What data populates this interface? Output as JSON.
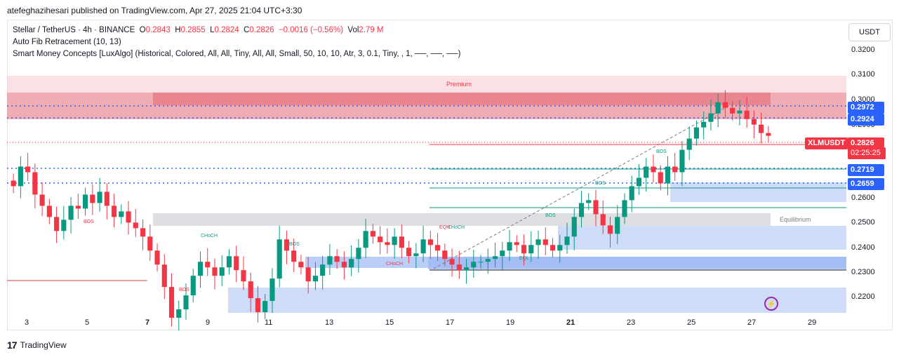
{
  "header": {
    "published": "atefeghazihesari published on TradingView.com, Apr 27, 2025 21:04 UTC+3:30"
  },
  "legend": {
    "symbol": "Stellar / TetherUS · 4h · BINANCE",
    "o_label": "O",
    "o": "0.2843",
    "h_label": "H",
    "h": "0.2855",
    "l_label": "L",
    "l": "0.2824",
    "c_label": "C",
    "c": "0.2826",
    "change": "−0.0016 (−0.56%)",
    "vol_label": "Vol",
    "vol": "2.79 M",
    "indicator1": "Auto Fib Retracement (10, 13)",
    "indicator2": "Smart Money Concepts [LuxAlgo] (Historical, Colored, All, All, Tiny, All, All, Small, 50, 10, 10, Atr, 3, 0.1, Tiny, , 1, ──, ──, ──)"
  },
  "price_axis": {
    "currency": "USDT",
    "ticks": [
      "0.3200",
      "0.3100",
      "0.3000",
      "0.2900",
      "0.2600",
      "0.2500",
      "0.2400",
      "0.2300",
      "0.2200"
    ],
    "tags": {
      "t1": "0.2972",
      "t2": "0.2924",
      "t3": "0.2719",
      "t4": "0.2659",
      "symbol": "XLMUSDT",
      "last": "0.2826",
      "countdown": "02:25:25"
    }
  },
  "time_axis": [
    "3",
    "5",
    "7",
    "9",
    "11",
    "13",
    "15",
    "17",
    "19",
    "21",
    "23",
    "25",
    "27",
    "29"
  ],
  "zones": {
    "premium": "Premium",
    "equilibrium": "Equilibrium"
  },
  "annotations": {
    "bos": "BOS",
    "choch": "CHoCH",
    "eqh": "EQH",
    "eql": "EQL"
  },
  "brand": {
    "name": "TradingView"
  },
  "colors": {
    "up": "#089981",
    "down": "#f23645",
    "blue_tag": "#2962ff",
    "premium": "#f7c9cd",
    "discount": "#c9d8f7"
  },
  "chart_data": {
    "type": "candlestick",
    "symbol": "XLMUSDT",
    "interval": "4h",
    "ylim": [
      0.2135,
      0.3245
    ],
    "candles_close_approx": [
      0.265,
      0.272,
      0.27,
      0.262,
      0.258,
      0.254,
      0.249,
      0.253,
      0.258,
      0.257,
      0.262,
      0.259,
      0.263,
      0.258,
      0.254,
      0.256,
      0.252,
      0.25,
      0.247,
      0.242,
      0.237,
      0.229,
      0.218,
      0.221,
      0.226,
      0.233,
      0.238,
      0.236,
      0.233,
      0.236,
      0.24,
      0.235,
      0.231,
      0.225,
      0.22,
      0.224,
      0.232,
      0.246,
      0.242,
      0.238,
      0.236,
      0.231,
      0.233,
      0.237,
      0.24,
      0.238,
      0.236,
      0.239,
      0.243,
      0.249,
      0.247,
      0.245,
      0.244,
      0.247,
      0.243,
      0.24,
      0.241,
      0.246,
      0.244,
      0.242,
      0.239,
      0.237,
      0.235,
      0.236,
      0.238,
      0.238,
      0.239,
      0.24,
      0.242,
      0.245,
      0.244,
      0.241,
      0.244,
      0.246,
      0.244,
      0.242,
      0.244,
      0.247,
      0.254,
      0.259,
      0.26,
      0.255,
      0.251,
      0.248,
      0.254,
      0.26,
      0.265,
      0.268,
      0.272,
      0.27,
      0.266,
      0.272,
      0.27,
      0.278,
      0.282,
      0.286,
      0.288,
      0.291,
      0.295,
      0.293,
      0.291,
      0.292,
      0.289,
      0.287,
      0.284,
      0.283
    ]
  }
}
